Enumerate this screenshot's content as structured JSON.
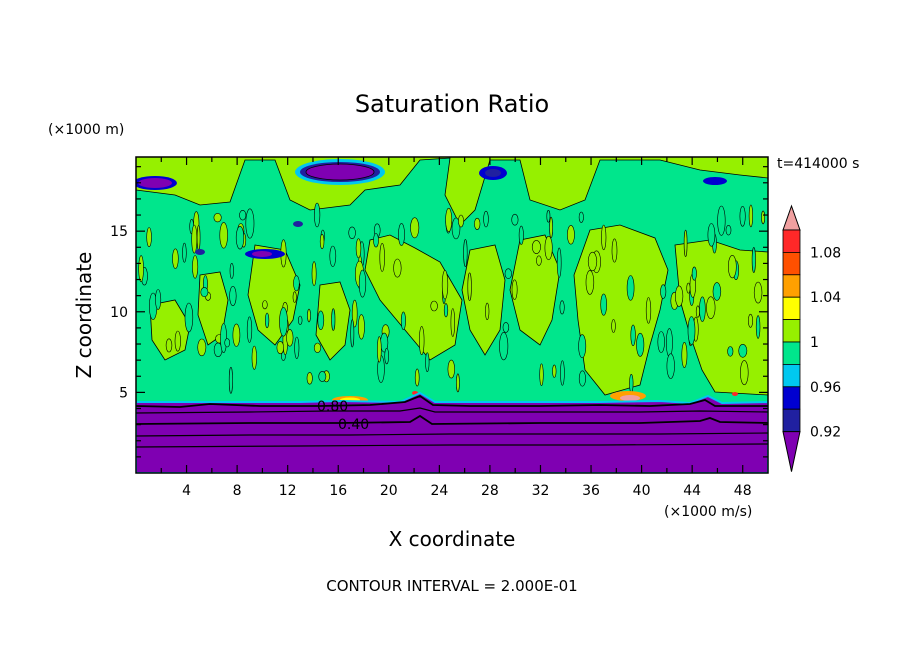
{
  "chart_data": {
    "type": "heatmap",
    "title": "Saturation Ratio",
    "xlabel": "X coordinate",
    "ylabel": "Z coordinate",
    "x_unit": "(×1000 m/s)",
    "y_unit": "(×1000 m)",
    "time_label": "t=414000 s",
    "footer": "CONTOUR INTERVAL = 2.000E-01",
    "xlim": [
      0,
      50
    ],
    "ylim": [
      0,
      19.6
    ],
    "x_ticks": [
      4,
      8,
      12,
      16,
      20,
      24,
      28,
      32,
      36,
      40,
      44,
      48
    ],
    "y_ticks": [
      5,
      10,
      15
    ],
    "contour_labels": [
      {
        "text": "0.80",
        "x": 16.6,
        "y": 4.2
      },
      {
        "text": "0.40",
        "x": 17.5,
        "y": 3.0
      }
    ],
    "colorbar": {
      "labels": [
        "1.08",
        "1.04",
        "1",
        "0.96",
        "0.92"
      ],
      "levels": [
        0.92,
        0.94,
        0.96,
        0.98,
        1.0,
        1.02,
        1.04,
        1.06,
        1.08,
        1.1
      ],
      "colors": [
        "#7f00b2",
        "#2020a0",
        "#0000d0",
        "#00c8f0",
        "#00e68c",
        "#96f000",
        "#ffff00",
        "#ffa000",
        "#ff5000",
        "#ff2828",
        "#f0a0a0"
      ]
    },
    "regions": {
      "subsaturated_layer_top_z": 4.8,
      "background_level": "0.98-1.00",
      "cloud_level": "1.00-1.02"
    },
    "colors": {
      "purple": "#7f00b2",
      "green": "#96f000",
      "aqua": "#00e68c",
      "cyan": "#00c8f0",
      "blue": "#0000d0",
      "navy": "#2020a0",
      "yellow": "#ffff00",
      "orange": "#ffa000",
      "red": "#ff2828",
      "pink": "#f0a0a0"
    }
  }
}
